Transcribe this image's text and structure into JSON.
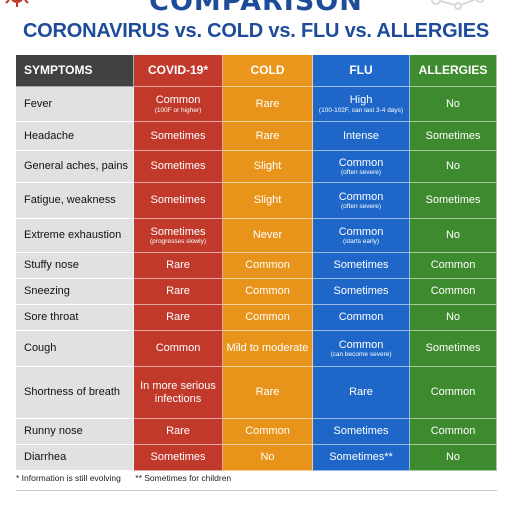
{
  "banner": {
    "title": "COMPARISON"
  },
  "title": "CORONAVIRUS vs. COLD vs. FLU vs. ALLERGIES",
  "headers": [
    "SYMPTOMS",
    "COVID-19*",
    "COLD",
    "FLU",
    "ALLERGIES"
  ],
  "rows": [
    {
      "symptom": "Fever",
      "covid": {
        "main": "Common",
        "sub": "(100F or higher)"
      },
      "cold": {
        "main": "Rare",
        "sub": ""
      },
      "flu": {
        "main": "High",
        "sub": "(100-102F, can last 3-4 days)"
      },
      "allergies": {
        "main": "No",
        "sub": ""
      }
    },
    {
      "symptom": "Headache",
      "covid": {
        "main": "Sometimes",
        "sub": ""
      },
      "cold": {
        "main": "Rare",
        "sub": ""
      },
      "flu": {
        "main": "Intense",
        "sub": ""
      },
      "allergies": {
        "main": "Sometimes",
        "sub": ""
      }
    },
    {
      "symptom": "General aches, pains",
      "covid": {
        "main": "Sometimes",
        "sub": ""
      },
      "cold": {
        "main": "Slight",
        "sub": ""
      },
      "flu": {
        "main": "Common",
        "sub": "(often severe)"
      },
      "allergies": {
        "main": "No",
        "sub": ""
      }
    },
    {
      "symptom": "Fatigue, weakness",
      "covid": {
        "main": "Sometimes",
        "sub": ""
      },
      "cold": {
        "main": "Slight",
        "sub": ""
      },
      "flu": {
        "main": "Common",
        "sub": "(often severe)"
      },
      "allergies": {
        "main": "Sometimes",
        "sub": ""
      }
    },
    {
      "symptom": "Extreme exhaustion",
      "covid": {
        "main": "Sometimes",
        "sub": "(progresses slowly)"
      },
      "cold": {
        "main": "Never",
        "sub": ""
      },
      "flu": {
        "main": "Common",
        "sub": "(starts early)"
      },
      "allergies": {
        "main": "No",
        "sub": ""
      }
    },
    {
      "symptom": "Stuffy nose",
      "covid": {
        "main": "Rare",
        "sub": ""
      },
      "cold": {
        "main": "Common",
        "sub": ""
      },
      "flu": {
        "main": "Sometimes",
        "sub": ""
      },
      "allergies": {
        "main": "Common",
        "sub": ""
      }
    },
    {
      "symptom": "Sneezing",
      "covid": {
        "main": "Rare",
        "sub": ""
      },
      "cold": {
        "main": "Common",
        "sub": ""
      },
      "flu": {
        "main": "Sometimes",
        "sub": ""
      },
      "allergies": {
        "main": "Common",
        "sub": ""
      }
    },
    {
      "symptom": "Sore throat",
      "covid": {
        "main": "Rare",
        "sub": ""
      },
      "cold": {
        "main": "Common",
        "sub": ""
      },
      "flu": {
        "main": "Common",
        "sub": ""
      },
      "allergies": {
        "main": "No",
        "sub": ""
      }
    },
    {
      "symptom": "Cough",
      "covid": {
        "main": "Common",
        "sub": ""
      },
      "cold": {
        "main": "Mild to moderate",
        "sub": ""
      },
      "flu": {
        "main": "Common",
        "sub": "(can become severe)"
      },
      "allergies": {
        "main": "Sometimes",
        "sub": ""
      }
    },
    {
      "symptom": "Shortness of breath",
      "covid": {
        "main": "In more serious infections",
        "sub": ""
      },
      "cold": {
        "main": "Rare",
        "sub": ""
      },
      "flu": {
        "main": "Rare",
        "sub": ""
      },
      "allergies": {
        "main": "Common",
        "sub": ""
      }
    },
    {
      "symptom": "Runny nose",
      "covid": {
        "main": "Rare",
        "sub": ""
      },
      "cold": {
        "main": "Common",
        "sub": ""
      },
      "flu": {
        "main": "Sometimes",
        "sub": ""
      },
      "allergies": {
        "main": "Common",
        "sub": ""
      }
    },
    {
      "symptom": "Diarrhea",
      "covid": {
        "main": "Sometimes",
        "sub": ""
      },
      "cold": {
        "main": "No",
        "sub": ""
      },
      "flu": {
        "main": "Sometimes**",
        "sub": ""
      },
      "allergies": {
        "main": "No",
        "sub": ""
      }
    }
  ],
  "footnotes": [
    "* Information is still evolving",
    "** Sometimes for children"
  ],
  "colors": {
    "covid": "#c0392b",
    "cold": "#e8941a",
    "flu": "#1e67c9",
    "allergies": "#3e8a2e",
    "header": "#414141",
    "title": "#1e4c9a"
  },
  "icons": {
    "corner_left": "virus-icon",
    "corner_right": "molecule-dots-icon"
  }
}
